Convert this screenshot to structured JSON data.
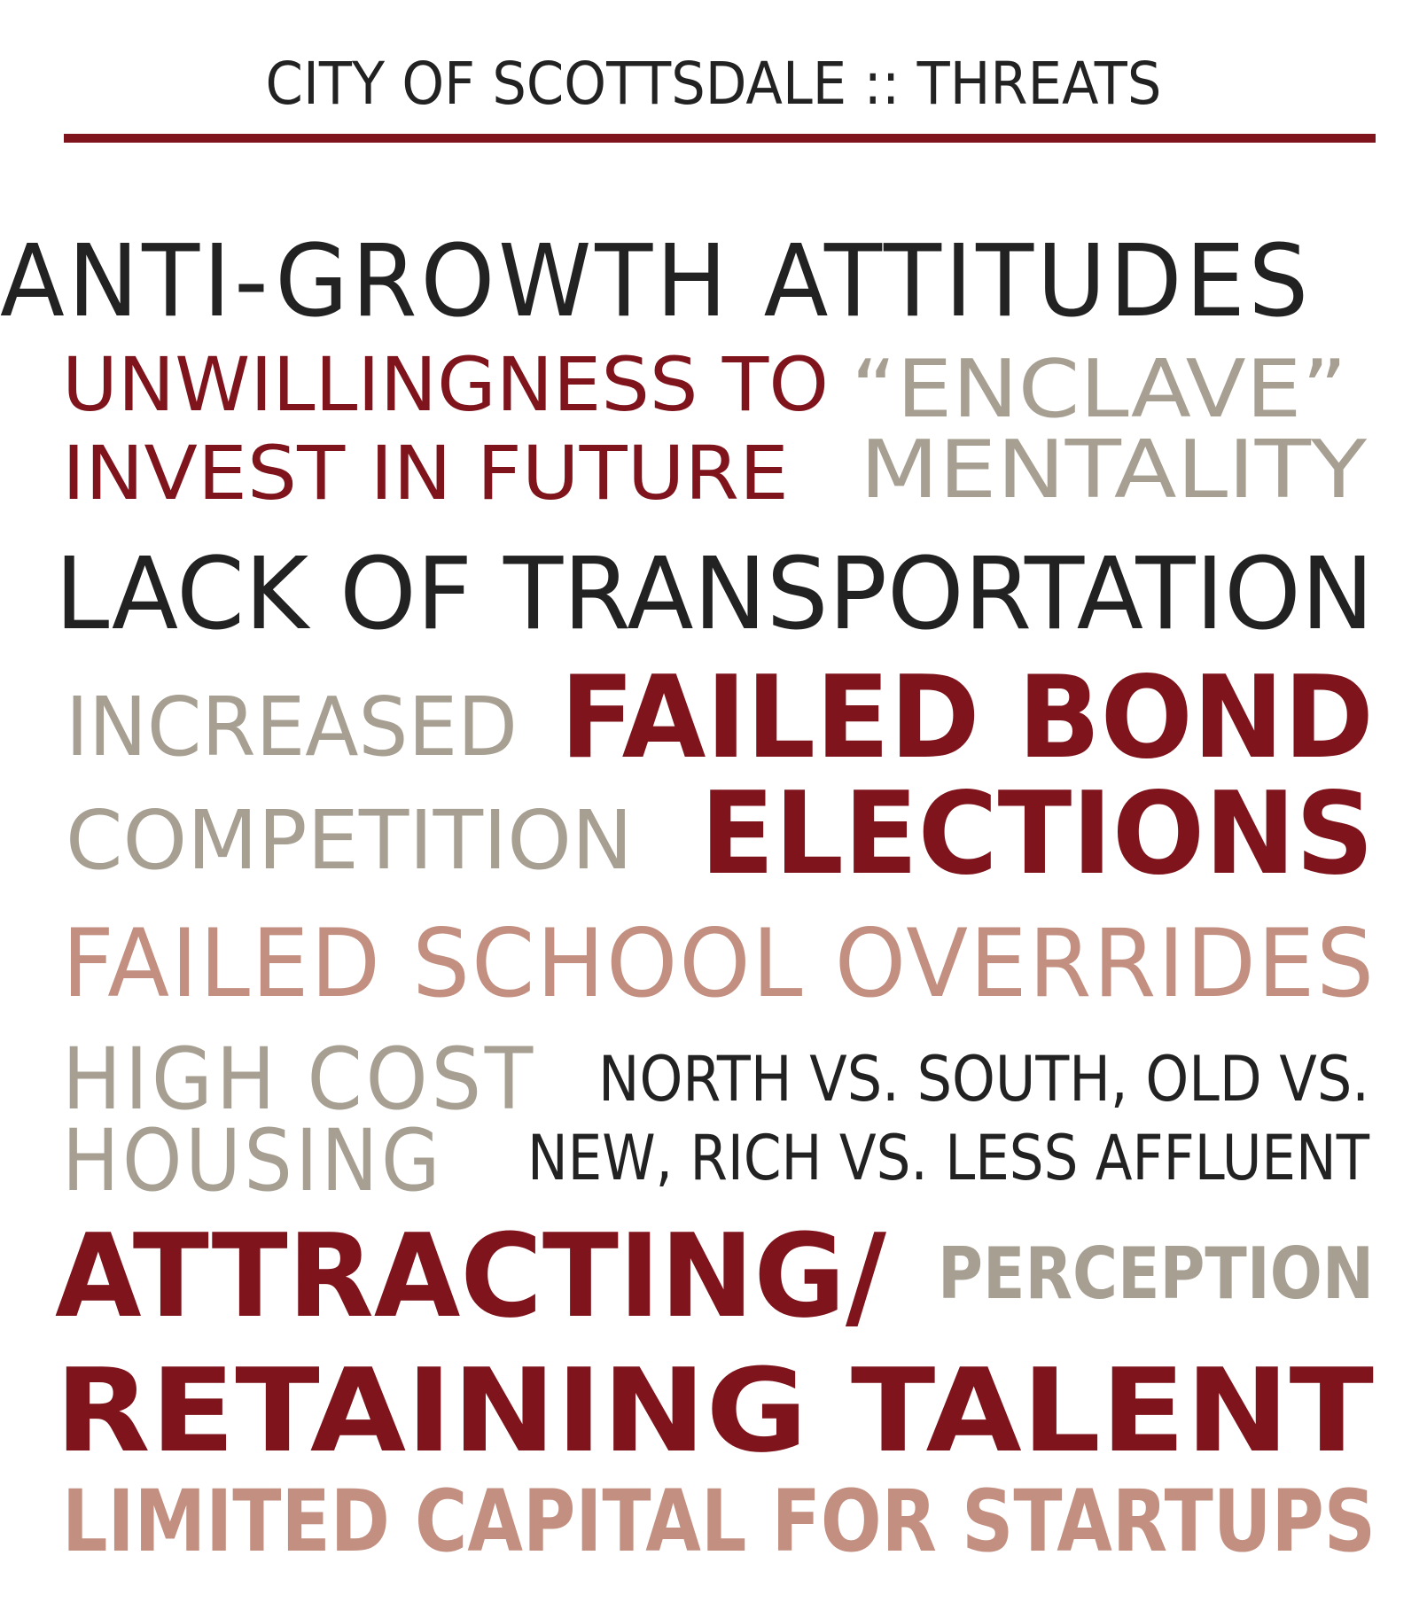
{
  "header": {
    "title": "CITY OF SCOTTSDALE :: THREATS",
    "rule_color": "#7f141c"
  },
  "palette": {
    "dark": "#222222",
    "maroon": "#7f141c",
    "gray": "#a69f92",
    "rose": "#c28f80"
  },
  "threats": {
    "anti_growth": "ANTI-GROWTH ATTITUDES",
    "unwillingness_line1": "UNWILLINGNESS TO",
    "unwillingness_line2": "INVEST IN FUTURE",
    "enclave_line1": "“ENCLAVE”",
    "enclave_line2": "MENTALITY",
    "transportation": "LACK OF TRANSPORTATION",
    "competition_line1": "INCREASED",
    "competition_line2": "COMPETITION",
    "bond_line1": "FAILED BOND",
    "bond_line2": "ELECTIONS",
    "school_overrides": "FAILED SCHOOL OVERRIDES",
    "housing_line1": "HIGH COST",
    "housing_line2": "HOUSING",
    "divides_line1": "NORTH VS. SOUTH, OLD VS.",
    "divides_line2": "NEW, RICH VS. LESS AFFLUENT",
    "talent_line1": "ATTRACTING/",
    "talent_line2": "RETAINING TALENT",
    "perception": "PERCEPTION",
    "capital": "LIMITED CAPITAL FOR STARTUPS"
  }
}
